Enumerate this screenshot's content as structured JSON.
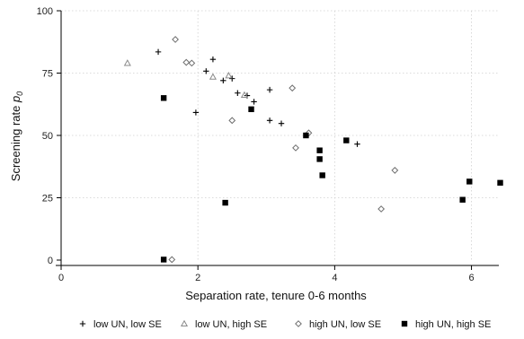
{
  "chart_data": {
    "type": "scatter",
    "title": "",
    "xlabel": "Separation rate, tenure 0-6 months",
    "ylabel_main": "Screening rate ",
    "ylabel_symbol": "p",
    "ylabel_sub": "0",
    "xlim": [
      0,
      6.4
    ],
    "ylim": [
      0,
      100
    ],
    "xticks": [
      0,
      2,
      4,
      6
    ],
    "yticks": [
      0,
      25,
      50,
      75,
      100
    ],
    "grid": true,
    "legend_position": "bottom",
    "series": [
      {
        "name": "low UN, low SE",
        "marker": "plus",
        "color": "#000000",
        "points": [
          [
            1.42,
            83.5
          ],
          [
            2.12,
            75.8
          ],
          [
            2.22,
            80.5
          ],
          [
            2.37,
            72.0
          ],
          [
            2.5,
            72.8
          ],
          [
            2.58,
            67.0
          ],
          [
            2.72,
            66.0
          ],
          [
            2.82,
            63.5
          ],
          [
            1.97,
            59.2
          ],
          [
            3.05,
            68.3
          ],
          [
            3.05,
            56.0
          ],
          [
            3.22,
            54.8
          ],
          [
            4.33,
            46.5
          ]
        ]
      },
      {
        "name": "low UN, high SE",
        "marker": "triangle",
        "color": "#8a8a8a",
        "points": [
          [
            0.97,
            79.0
          ],
          [
            2.22,
            73.5
          ],
          [
            2.45,
            74.0
          ],
          [
            2.68,
            66.2
          ]
        ]
      },
      {
        "name": "high UN, low SE",
        "marker": "diamond",
        "color": "#6e6e6e",
        "points": [
          [
            1.67,
            88.5
          ],
          [
            1.83,
            79.3
          ],
          [
            1.91,
            79.0
          ],
          [
            2.5,
            56.0
          ],
          [
            3.38,
            69.0
          ],
          [
            3.62,
            51.0
          ],
          [
            3.43,
            45.0
          ],
          [
            4.88,
            36.0
          ],
          [
            4.68,
            20.5
          ],
          [
            1.62,
            0.2
          ]
        ]
      },
      {
        "name": "high UN, high SE",
        "marker": "square",
        "color": "#000000",
        "points": [
          [
            1.5,
            65.0
          ],
          [
            2.78,
            60.5
          ],
          [
            3.58,
            50.0
          ],
          [
            3.78,
            44.0
          ],
          [
            3.78,
            40.5
          ],
          [
            3.82,
            34.0
          ],
          [
            4.17,
            48.0
          ],
          [
            2.4,
            23.0
          ],
          [
            5.87,
            24.2
          ],
          [
            5.97,
            31.5
          ],
          [
            6.42,
            31.0
          ],
          [
            1.5,
            0.2
          ]
        ]
      }
    ]
  }
}
